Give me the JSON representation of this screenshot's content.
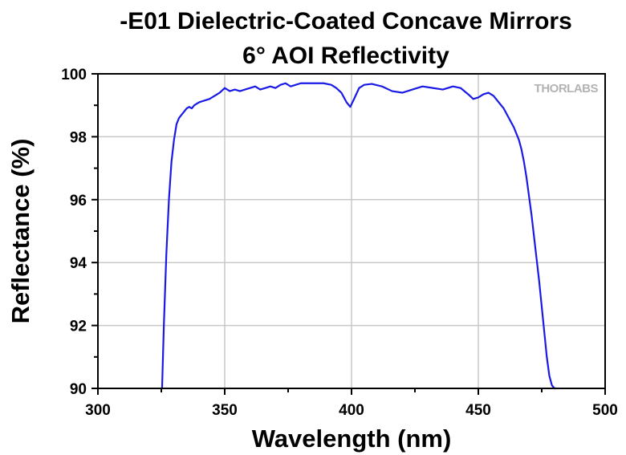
{
  "chart_data": {
    "type": "line",
    "title": "-E01 Dielectric-Coated Concave Mirrors",
    "subtitle": "6° AOI Reflectivity",
    "xlabel": "Wavelength (nm)",
    "ylabel": "Reflectance (%)",
    "xlim": [
      300,
      500
    ],
    "ylim": [
      90,
      100
    ],
    "xticks": [
      300,
      350,
      400,
      450,
      500
    ],
    "yticks": [
      90,
      92,
      94,
      96,
      98,
      100
    ],
    "grid": true,
    "logo": "THORLABS",
    "series": [
      {
        "color": "#1a1ae6",
        "x": [
          325.3,
          326,
          327,
          328,
          329,
          330,
          331,
          332,
          333,
          334,
          335,
          336,
          337,
          338,
          339,
          340,
          342,
          344,
          346,
          348,
          350,
          352,
          354,
          356,
          358,
          360,
          362,
          364,
          366,
          368,
          370,
          372,
          374,
          376,
          378,
          380,
          383,
          386,
          389,
          392,
          394,
          396,
          398,
          399.5,
          401,
          403,
          405,
          408,
          412,
          416,
          420,
          424,
          428,
          432,
          436,
          440,
          443,
          446,
          448,
          450,
          452,
          454,
          456,
          458,
          460,
          462,
          464,
          466,
          467,
          468,
          469,
          470,
          471,
          472,
          473,
          474,
          475,
          476,
          477,
          478,
          479,
          480,
          480.7
        ],
        "y": [
          90.0,
          92.0,
          94.3,
          96.0,
          97.2,
          97.9,
          98.4,
          98.6,
          98.7,
          98.8,
          98.9,
          98.95,
          98.9,
          99.0,
          99.05,
          99.1,
          99.15,
          99.2,
          99.3,
          99.4,
          99.55,
          99.45,
          99.5,
          99.45,
          99.5,
          99.55,
          99.6,
          99.5,
          99.55,
          99.6,
          99.55,
          99.65,
          99.7,
          99.6,
          99.65,
          99.7,
          99.7,
          99.7,
          99.7,
          99.65,
          99.55,
          99.4,
          99.1,
          98.95,
          99.2,
          99.55,
          99.65,
          99.68,
          99.6,
          99.45,
          99.4,
          99.5,
          99.6,
          99.55,
          99.5,
          99.6,
          99.55,
          99.35,
          99.2,
          99.25,
          99.35,
          99.4,
          99.3,
          99.1,
          98.9,
          98.6,
          98.3,
          97.9,
          97.6,
          97.2,
          96.7,
          96.1,
          95.5,
          94.8,
          94.1,
          93.4,
          92.6,
          91.8,
          91.0,
          90.4,
          90.1,
          90.0,
          89.9
        ]
      }
    ]
  }
}
